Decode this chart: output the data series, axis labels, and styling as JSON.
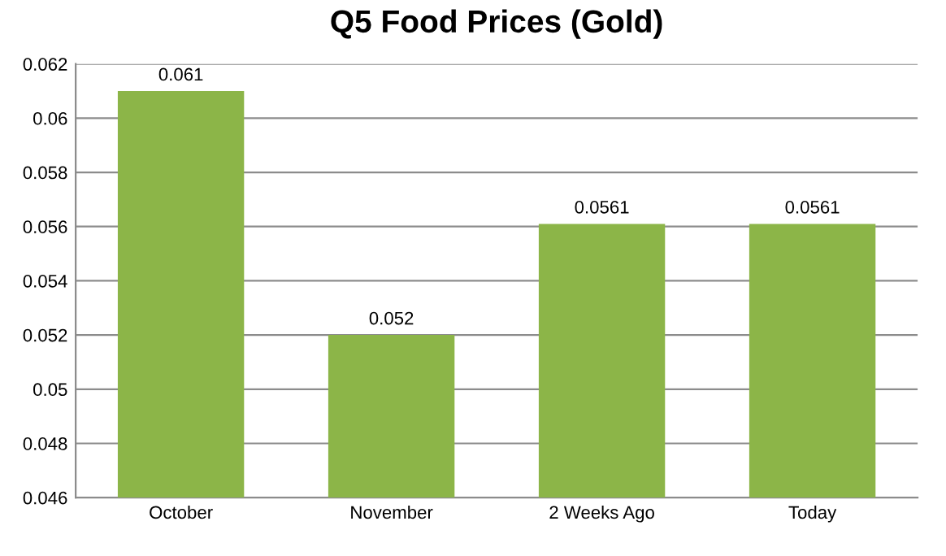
{
  "chart_data": {
    "type": "bar",
    "title": "Q5 Food Prices (Gold)",
    "categories": [
      "October",
      "November",
      "2 Weeks Ago",
      "Today"
    ],
    "values": [
      0.061,
      0.052,
      0.0561,
      0.0561
    ],
    "color": "#8cb548",
    "ylim": [
      0.046,
      0.062
    ],
    "yticks": [
      0.046,
      0.048,
      0.05,
      0.052,
      0.054,
      0.056,
      0.058,
      0.06,
      0.062
    ],
    "grid": "y",
    "data_labels": true
  }
}
